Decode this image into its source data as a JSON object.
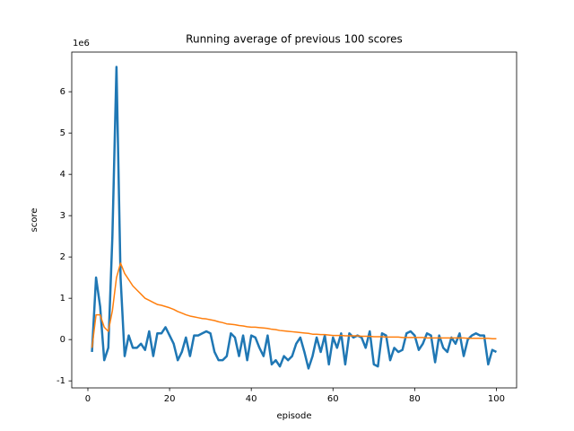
{
  "chart_data": {
    "type": "line",
    "title": "Running average of previous 100 scores",
    "xlabel": "episode",
    "ylabel": "score",
    "y_offset_label": "1e6",
    "x": [
      1,
      2,
      3,
      4,
      5,
      6,
      7,
      8,
      9,
      10,
      11,
      12,
      13,
      14,
      15,
      16,
      17,
      18,
      19,
      20,
      21,
      22,
      23,
      24,
      25,
      26,
      27,
      28,
      29,
      30,
      31,
      32,
      33,
      34,
      35,
      36,
      37,
      38,
      39,
      40,
      41,
      42,
      43,
      44,
      45,
      46,
      47,
      48,
      49,
      50,
      51,
      52,
      53,
      54,
      55,
      56,
      57,
      58,
      59,
      60,
      61,
      62,
      63,
      64,
      65,
      66,
      67,
      68,
      69,
      70,
      71,
      72,
      73,
      74,
      75,
      76,
      77,
      78,
      79,
      80,
      81,
      82,
      83,
      84,
      85,
      86,
      87,
      88,
      89,
      90,
      91,
      92,
      93,
      94,
      95,
      96,
      97,
      98,
      99,
      100
    ],
    "series": [
      {
        "color": "#1f77b4",
        "width": 2.5,
        "values": [
          -0.3,
          1.5,
          0.8,
          -0.5,
          -0.2,
          2.5,
          6.6,
          1.5,
          -0.4,
          0.1,
          -0.2,
          -0.2,
          -0.1,
          -0.25,
          0.2,
          -0.4,
          0.15,
          0.15,
          0.3,
          0.1,
          -0.1,
          -0.5,
          -0.3,
          0.05,
          -0.4,
          0.1,
          0.1,
          0.15,
          0.2,
          0.15,
          -0.3,
          -0.5,
          -0.5,
          -0.4,
          0.15,
          0.05,
          -0.4,
          0.1,
          -0.5,
          0.1,
          0.05,
          -0.2,
          -0.4,
          0.1,
          -0.6,
          -0.5,
          -0.65,
          -0.4,
          -0.5,
          -0.4,
          -0.1,
          0.05,
          -0.3,
          -0.7,
          -0.4,
          0.05,
          -0.3,
          0.1,
          -0.6,
          0.05,
          -0.2,
          0.15,
          -0.6,
          0.15,
          0.05,
          0.1,
          0.05,
          -0.2,
          0.2,
          -0.6,
          -0.65,
          0.15,
          0.1,
          -0.5,
          -0.2,
          -0.3,
          -0.25,
          0.15,
          0.2,
          0.1,
          -0.25,
          -0.1,
          0.15,
          0.1,
          -0.55,
          0.1,
          -0.2,
          -0.3,
          0.05,
          -0.1,
          0.15,
          -0.4,
          0.0,
          0.1,
          0.15,
          0.1,
          0.1,
          -0.6,
          -0.25,
          -0.3
        ]
      },
      {
        "color": "#ff7f0e",
        "width": 1.5,
        "values": [
          -0.2,
          0.6,
          0.6,
          0.3,
          0.2,
          0.7,
          1.5,
          1.85,
          1.6,
          1.45,
          1.3,
          1.2,
          1.1,
          1.0,
          0.95,
          0.9,
          0.85,
          0.83,
          0.8,
          0.77,
          0.73,
          0.68,
          0.64,
          0.6,
          0.57,
          0.55,
          0.53,
          0.51,
          0.5,
          0.48,
          0.46,
          0.43,
          0.41,
          0.38,
          0.37,
          0.36,
          0.34,
          0.33,
          0.31,
          0.3,
          0.3,
          0.29,
          0.28,
          0.27,
          0.25,
          0.24,
          0.22,
          0.21,
          0.2,
          0.19,
          0.18,
          0.17,
          0.16,
          0.15,
          0.13,
          0.13,
          0.12,
          0.12,
          0.11,
          0.1,
          0.1,
          0.1,
          0.09,
          0.09,
          0.09,
          0.09,
          0.08,
          0.08,
          0.08,
          0.07,
          0.07,
          0.07,
          0.06,
          0.06,
          0.06,
          0.06,
          0.05,
          0.05,
          0.05,
          0.05,
          0.05,
          0.05,
          0.04,
          0.04,
          0.04,
          0.04,
          0.04,
          0.04,
          0.04,
          0.04,
          0.04,
          0.04,
          0.03,
          0.03,
          0.03,
          0.03,
          0.03,
          0.03,
          0.02,
          0.02
        ]
      }
    ],
    "xlim": [
      -3.95,
      104.95
    ],
    "xticks": [
      0,
      20,
      40,
      60,
      80,
      100
    ],
    "ylim": [
      -1.17,
      6.96
    ],
    "yticks": [
      -1,
      0,
      1,
      2,
      3,
      4,
      5,
      6
    ]
  }
}
